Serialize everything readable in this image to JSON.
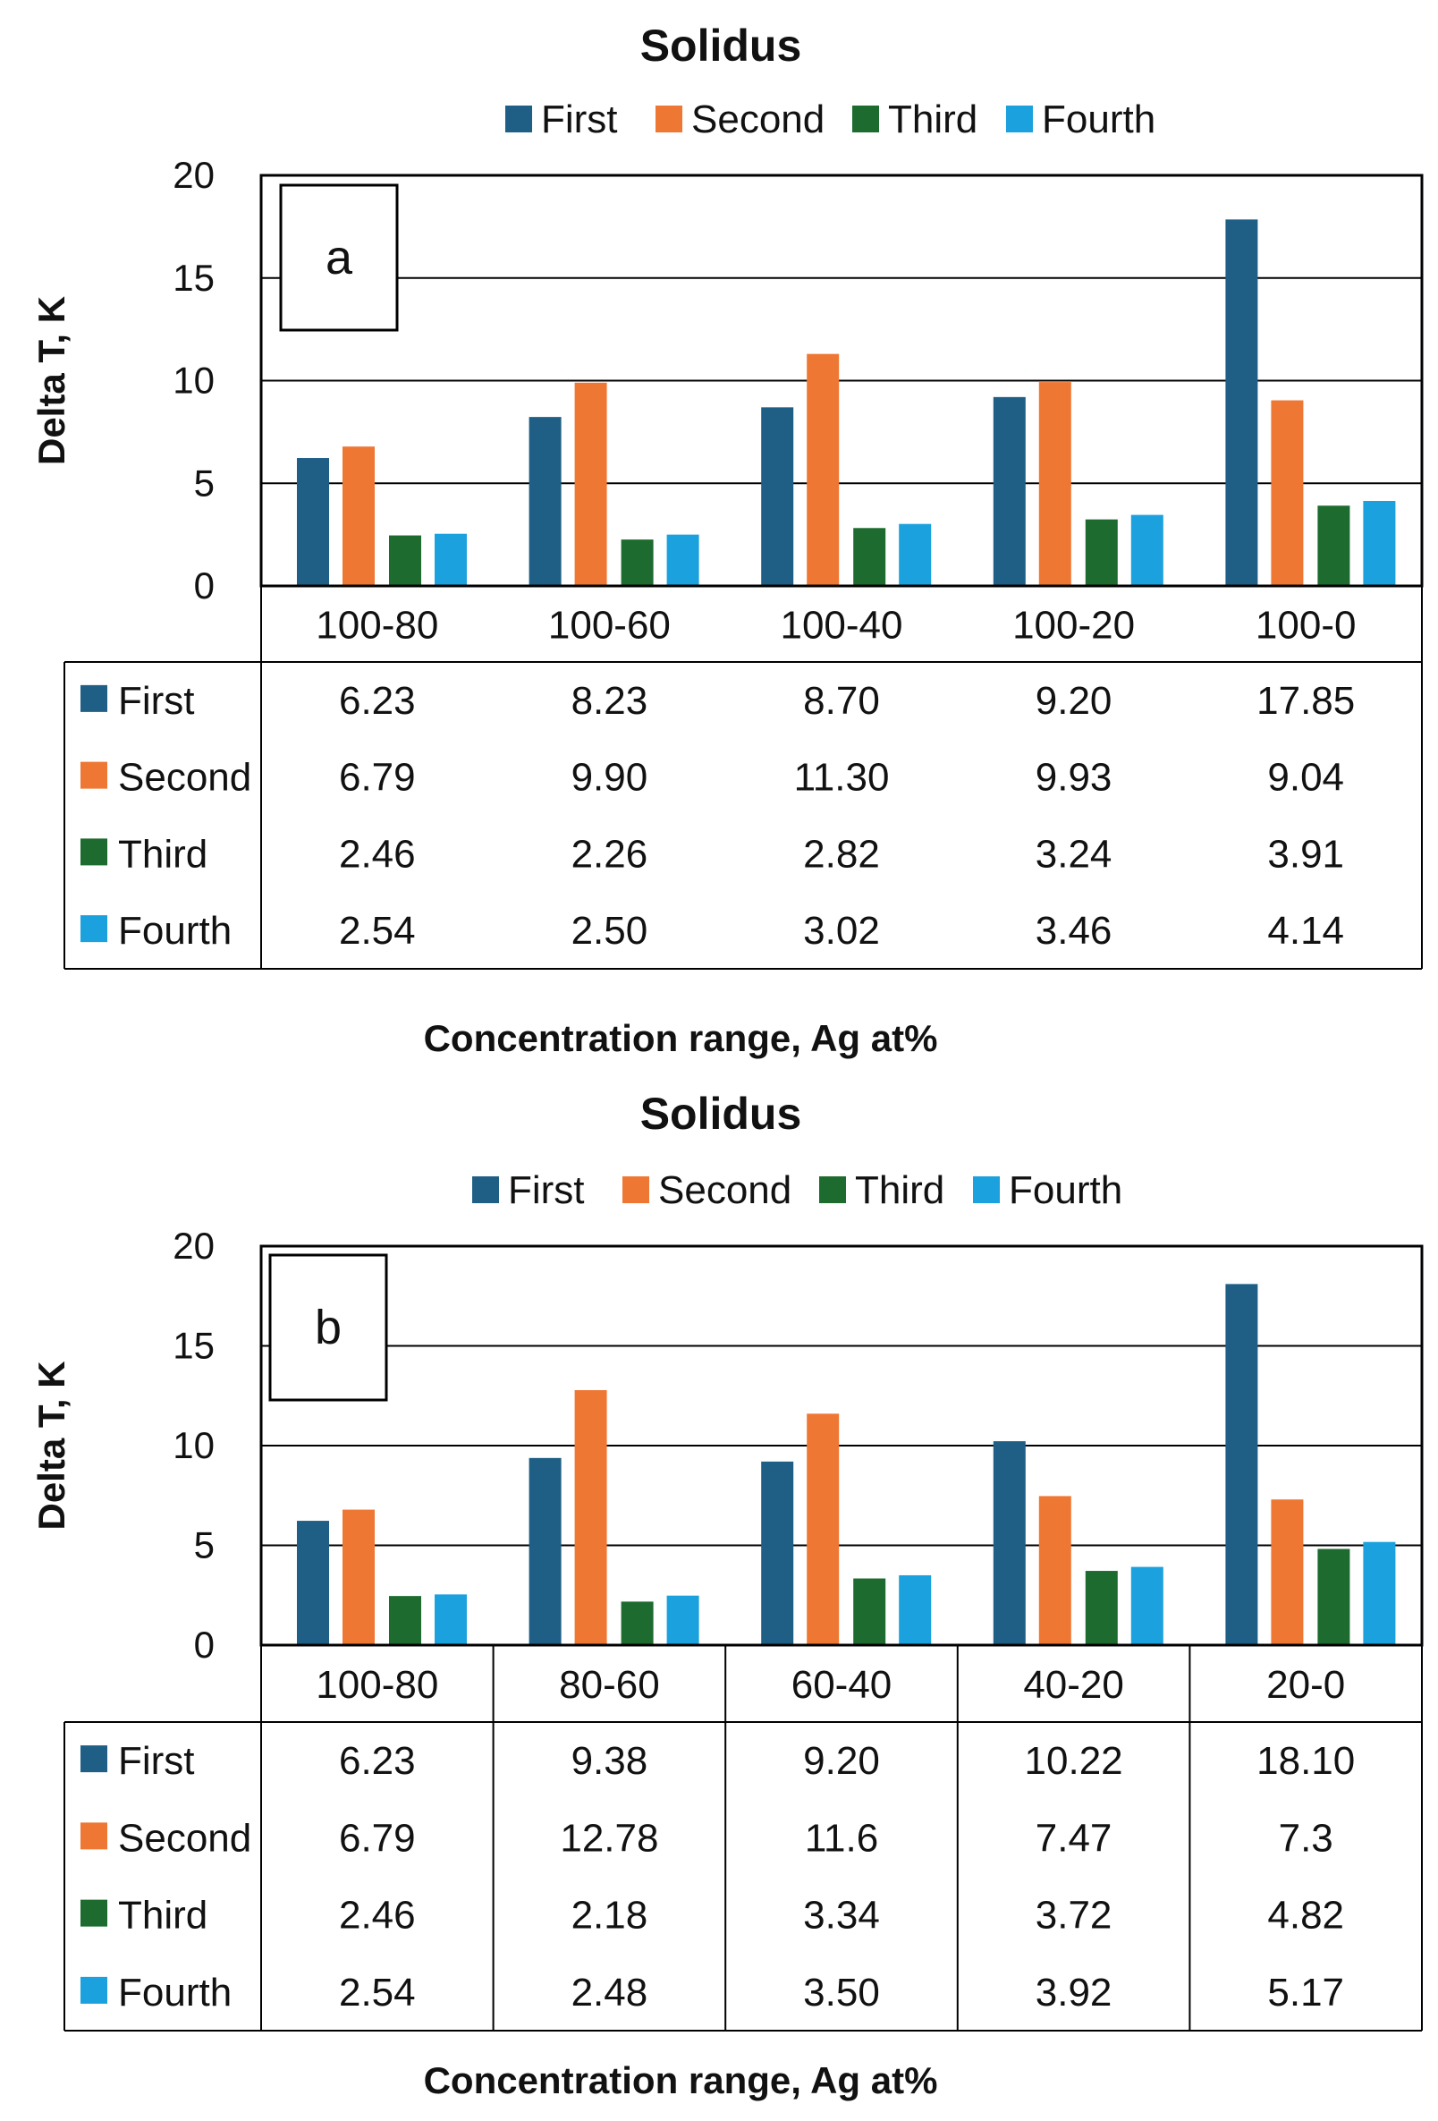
{
  "chart_data": [
    {
      "type": "bar",
      "panel_label": "a",
      "title": "Solidus",
      "ylabel": "Delta T, K",
      "xlabel": "Concentration range, Ag at%",
      "ylim": [
        0,
        20
      ],
      "yticks": [
        "0",
        "5",
        "10",
        "15",
        "20"
      ],
      "grid": true,
      "legend_position": "top",
      "data_table": true,
      "categories": [
        "100-80",
        "100-60",
        "100-40",
        "100-20",
        "100-0"
      ],
      "series": [
        {
          "name": "First",
          "color": "#1f5f86",
          "values": [
            6.23,
            8.23,
            8.7,
            9.2,
            17.85
          ],
          "labels": [
            "6.23",
            "8.23",
            "8.70",
            "9.20",
            "17.85"
          ]
        },
        {
          "name": "Second",
          "color": "#ee7733",
          "values": [
            6.79,
            9.9,
            11.3,
            9.93,
            9.04
          ],
          "labels": [
            "6.79",
            "9.90",
            "11.30",
            "9.93",
            "9.04"
          ]
        },
        {
          "name": "Third",
          "color": "#1d6b2e",
          "values": [
            2.46,
            2.26,
            2.82,
            3.24,
            3.91
          ],
          "labels": [
            "2.46",
            "2.26",
            "2.82",
            "3.24",
            "3.91"
          ]
        },
        {
          "name": "Fourth",
          "color": "#1ba1dd",
          "values": [
            2.54,
            2.5,
            3.02,
            3.46,
            4.14
          ],
          "labels": [
            "2.54",
            "2.50",
            "3.02",
            "3.46",
            "4.14"
          ]
        }
      ]
    },
    {
      "type": "bar",
      "panel_label": "b",
      "title": "Solidus",
      "ylabel": "Delta T, K",
      "xlabel": "Concentration range, Ag at%",
      "ylim": [
        0,
        20
      ],
      "yticks": [
        "0",
        "5",
        "10",
        "15",
        "20"
      ],
      "grid": true,
      "legend_position": "top",
      "data_table": true,
      "categories": [
        "100-80",
        "80-60",
        "60-40",
        "40-20",
        "20-0"
      ],
      "series": [
        {
          "name": "First",
          "color": "#1f5f86",
          "values": [
            6.23,
            9.38,
            9.2,
            10.22,
            18.1
          ],
          "labels": [
            "6.23",
            "9.38",
            "9.20",
            "10.22",
            "18.10"
          ]
        },
        {
          "name": "Second",
          "color": "#ee7733",
          "values": [
            6.79,
            12.78,
            11.6,
            7.47,
            7.3
          ],
          "labels": [
            "6.79",
            "12.78",
            "11.6",
            "7.47",
            "7.3"
          ]
        },
        {
          "name": "Third",
          "color": "#1d6b2e",
          "values": [
            2.46,
            2.18,
            3.34,
            3.72,
            4.82
          ],
          "labels": [
            "2.46",
            "2.18",
            "3.34",
            "3.72",
            "4.82"
          ]
        },
        {
          "name": "Fourth",
          "color": "#1ba1dd",
          "values": [
            2.54,
            2.48,
            3.5,
            3.92,
            5.17
          ],
          "labels": [
            "2.54",
            "2.48",
            "3.50",
            "3.92",
            "5.17"
          ]
        }
      ]
    }
  ]
}
